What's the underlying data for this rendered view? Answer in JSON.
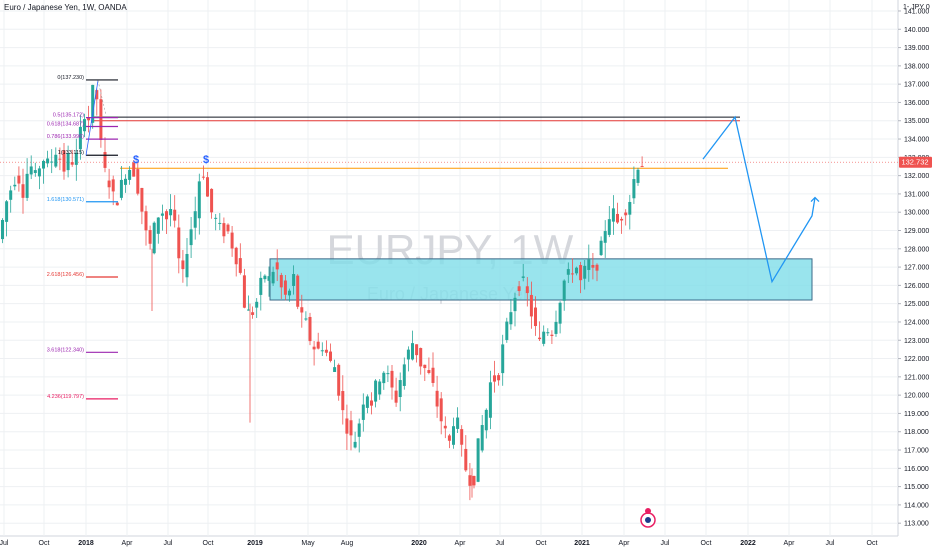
{
  "header": {
    "symbol_title": "Euro / Japanese Yen, 1W, OANDA",
    "currency_label": "1- JPY 0"
  },
  "watermark": {
    "symbol": "EURJPY, 1W",
    "name": "Euro / Japanese Yen"
  },
  "last_price": {
    "label": "132.732",
    "value": 132.732,
    "color": "#ef5350"
  },
  "colors": {
    "up": "#26a69a",
    "down": "#ef5350",
    "grid": "#eef0f3",
    "zone_fill": "#7fdde8",
    "zone_border": "#3a6a88",
    "projection": "#2196f3",
    "orange_line": "#ff9800"
  },
  "fib_levels": [
    {
      "label": "0(137.230)",
      "value": 137.23,
      "color": "#131722"
    },
    {
      "label": "0.5(135.172)",
      "value": 135.172,
      "color": "#9c27b0"
    },
    {
      "label": "0.618(134.687)",
      "value": 134.687,
      "color": "#9c27b0"
    },
    {
      "label": "0.786(133.996)",
      "value": 133.996,
      "color": "#9c27b0"
    },
    {
      "label": "1(133.115)",
      "value": 133.115,
      "color": "#131722"
    },
    {
      "label": "1.618(130.571)",
      "value": 130.571,
      "color": "#2196f3"
    },
    {
      "label": "2.618(126.456)",
      "value": 126.456,
      "color": "#e53935"
    },
    {
      "label": "3.618(122.340)",
      "value": 122.34,
      "color": "#9c27b0"
    },
    {
      "label": "4.236(119.797)",
      "value": 119.797,
      "color": "#e91e63"
    }
  ],
  "dividend_markers": [
    "$",
    "$"
  ],
  "chart_data": {
    "type": "candlestick",
    "x_ticks": [
      "Jul",
      "Oct",
      "2018",
      "Apr",
      "Jul",
      "Oct",
      "2019",
      "May",
      "Aug",
      "2020",
      "Apr",
      "Jul",
      "Oct",
      "2021",
      "Apr",
      "Jul",
      "Oct",
      "2022",
      "Apr",
      "Jul",
      "Oct"
    ],
    "y_ticks": [
      113.0,
      114.0,
      115.0,
      116.0,
      117.0,
      118.0,
      119.0,
      120.0,
      121.0,
      122.0,
      123.0,
      124.0,
      125.0,
      126.0,
      127.0,
      128.0,
      129.0,
      130.0,
      131.0,
      132.0,
      133.0,
      134.0,
      135.0,
      136.0,
      137.0,
      138.0,
      139.0,
      140.0,
      141.0
    ],
    "ylim": [
      112.3,
      141.6
    ],
    "price_path": [
      [
        0,
        128.3
      ],
      [
        5,
        129.5
      ],
      [
        10,
        130.8
      ],
      [
        15,
        131.5
      ],
      [
        20,
        132.2
      ],
      [
        25,
        131.0
      ],
      [
        32,
        132.7
      ],
      [
        38,
        131.9
      ],
      [
        45,
        133.0
      ],
      [
        52,
        132.5
      ],
      [
        58,
        133.4
      ],
      [
        63,
        132.9
      ],
      [
        67,
        132.3
      ],
      [
        72,
        133.2
      ],
      [
        77,
        132.5
      ],
      [
        82,
        133.9
      ],
      [
        86,
        135.8
      ],
      [
        90,
        134.6
      ],
      [
        94,
        136.3
      ],
      [
        98,
        137.2
      ],
      [
        102,
        134.4
      ],
      [
        106,
        132.4
      ],
      [
        112,
        131.6
      ],
      [
        118,
        130.4
      ],
      [
        124,
        131.5
      ],
      [
        130,
        132.5
      ],
      [
        136,
        132.3
      ],
      [
        142,
        131.0
      ],
      [
        147,
        129.2
      ],
      [
        152,
        128.0
      ],
      [
        158,
        129.4
      ],
      [
        163,
        130.2
      ],
      [
        170,
        129.6
      ],
      [
        175,
        130.5
      ],
      [
        180,
        127.6
      ],
      [
        186,
        126.4
      ],
      [
        191,
        128.7
      ],
      [
        197,
        129.7
      ],
      [
        201,
        131.7
      ],
      [
        206,
        132.2
      ],
      [
        212,
        130.2
      ],
      [
        218,
        129.6
      ],
      [
        224,
        128.9
      ],
      [
        230,
        129.0
      ],
      [
        236,
        128.0
      ],
      [
        242,
        127.0
      ],
      [
        248,
        124.6
      ],
      [
        254,
        124.4
      ],
      [
        260,
        125.2
      ],
      [
        266,
        126.7
      ],
      [
        272,
        126.3
      ],
      [
        278,
        127.2
      ],
      [
        284,
        125.8
      ],
      [
        290,
        125.2
      ],
      [
        296,
        126.5
      ],
      [
        302,
        124.3
      ],
      [
        308,
        124.0
      ],
      [
        314,
        122.8
      ],
      [
        320,
        122.4
      ],
      [
        326,
        122.8
      ],
      [
        332,
        121.8
      ],
      [
        338,
        121.5
      ],
      [
        344,
        119.3
      ],
      [
        350,
        118.2
      ],
      [
        356,
        117.2
      ],
      [
        362,
        118.6
      ],
      [
        368,
        120.4
      ],
      [
        374,
        119.6
      ],
      [
        380,
        120.8
      ],
      [
        386,
        121.4
      ],
      [
        392,
        120.8
      ],
      [
        398,
        119.6
      ],
      [
        404,
        121.2
      ],
      [
        410,
        122.2
      ],
      [
        416,
        123.0
      ],
      [
        422,
        121.8
      ],
      [
        428,
        121.4
      ],
      [
        434,
        120.8
      ],
      [
        440,
        119.4
      ],
      [
        446,
        118.2
      ],
      [
        452,
        117.4
      ],
      [
        458,
        119.2
      ],
      [
        464,
        117.0
      ],
      [
        470,
        115.6
      ],
      [
        476,
        115.2
      ],
      [
        482,
        117.8
      ],
      [
        488,
        118.9
      ],
      [
        494,
        121.0
      ],
      [
        500,
        120.8
      ],
      [
        506,
        122.8
      ],
      [
        512,
        124.4
      ],
      [
        518,
        125.6
      ],
      [
        524,
        126.4
      ],
      [
        530,
        125.4
      ],
      [
        536,
        124.0
      ],
      [
        542,
        122.8
      ],
      [
        548,
        123.8
      ],
      [
        554,
        123.4
      ],
      [
        560,
        124.6
      ],
      [
        566,
        126.2
      ],
      [
        572,
        126.6
      ],
      [
        578,
        127.2
      ],
      [
        584,
        126.0
      ],
      [
        590,
        127.4
      ],
      [
        596,
        126.6
      ],
      [
        602,
        127.6
      ],
      [
        608,
        129.2
      ],
      [
        614,
        130.2
      ],
      [
        620,
        129.4
      ],
      [
        626,
        130.0
      ],
      [
        632,
        130.6
      ],
      [
        636,
        131.7
      ],
      [
        641,
        132.7
      ]
    ],
    "projection": [
      [
        703,
        132.9
      ],
      [
        735,
        135.2
      ],
      [
        772,
        126.2
      ],
      [
        812,
        129.8
      ],
      [
        815,
        130.8
      ]
    ],
    "demand_zone": {
      "x_start": 270,
      "x_end": 812,
      "top": 127.45,
      "bottom": 125.2
    },
    "horizontal_lines": [
      {
        "value": 135.2,
        "color": "#131722",
        "x_start": 94,
        "x_end": 740
      },
      {
        "value": 135.0,
        "color": "#e53935",
        "x_start": 94,
        "x_end": 740
      },
      {
        "value": 132.4,
        "color": "#ff9800",
        "x_start": 120,
        "x_end": 728
      }
    ]
  }
}
